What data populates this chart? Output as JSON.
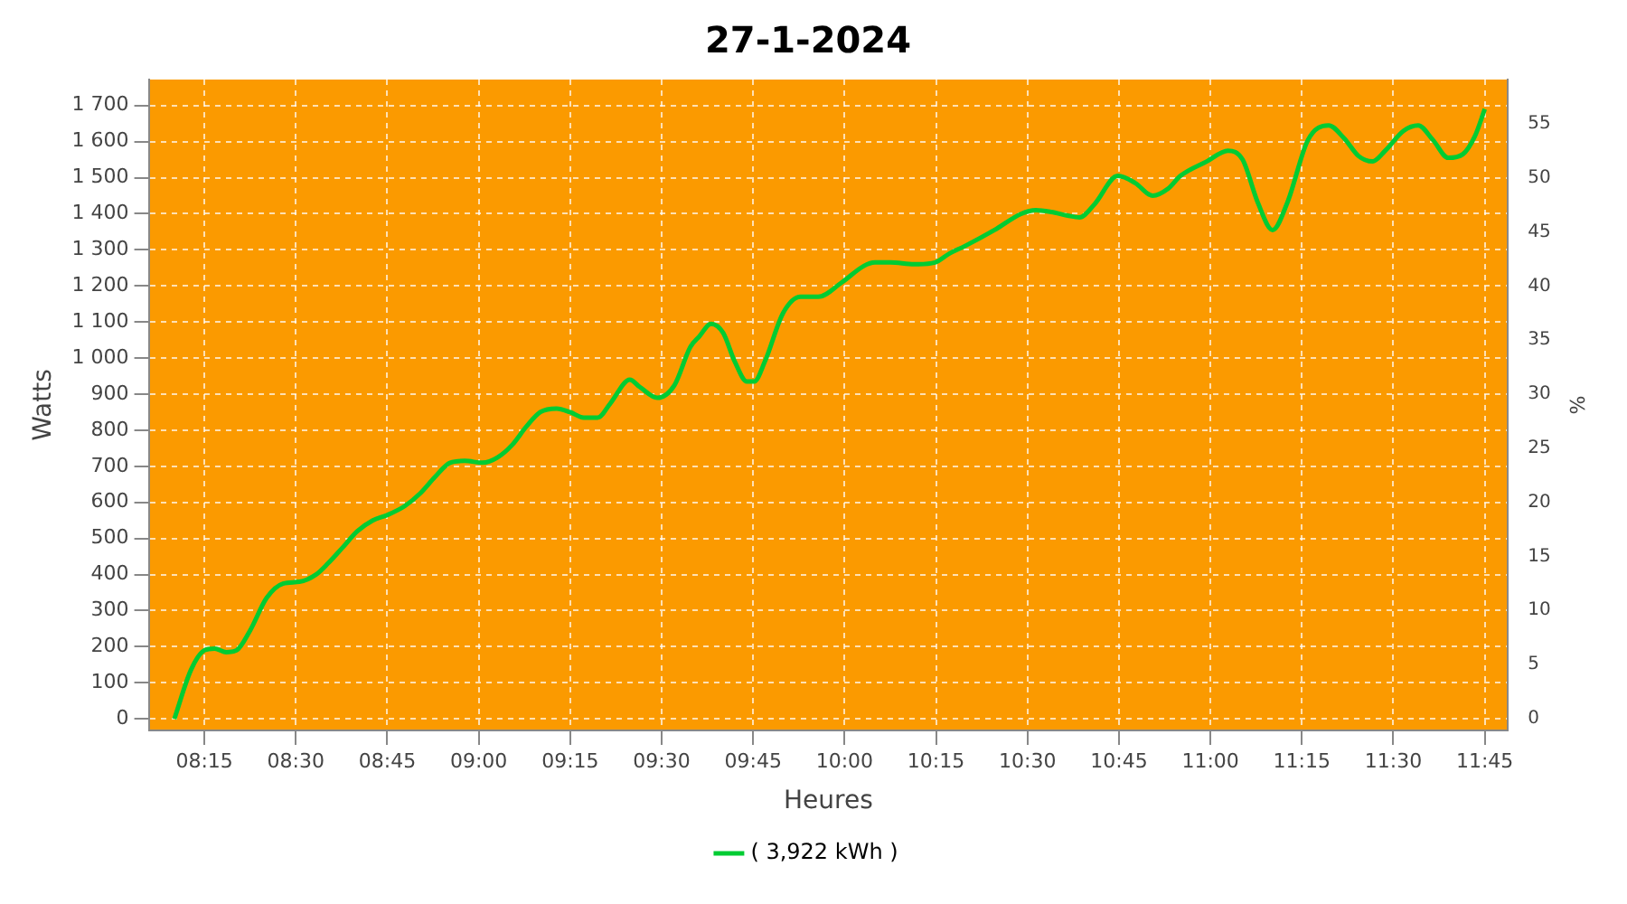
{
  "chart_data": {
    "type": "line",
    "title": "27-1-2024",
    "xlabel": "Heures",
    "ylabel": "Watts",
    "y2label": "%",
    "x": [
      8.168,
      8.213,
      8.25,
      8.278,
      8.31,
      8.338,
      8.375,
      8.42,
      8.465,
      8.51,
      8.555,
      8.587,
      8.628,
      8.668,
      8.71,
      8.75,
      8.798,
      8.84,
      8.88,
      8.922,
      8.962,
      9.01,
      9.052,
      9.092,
      9.13,
      9.168,
      9.213,
      9.25,
      9.287,
      9.325,
      9.36,
      9.413,
      9.44,
      9.488,
      9.535,
      9.578,
      9.603,
      9.635,
      9.668,
      9.7,
      9.733,
      9.753,
      9.782,
      9.832,
      9.88,
      9.928,
      9.993,
      10.052,
      10.083,
      10.125,
      10.19,
      10.247,
      10.287,
      10.328,
      10.41,
      10.483,
      10.523,
      10.565,
      10.61,
      10.642,
      10.682,
      10.747,
      10.795,
      10.842,
      10.885,
      10.918,
      10.99,
      11.048,
      11.088,
      11.13,
      11.17,
      11.21,
      11.267,
      11.323,
      11.365,
      11.405,
      11.443,
      11.478,
      11.528,
      11.568,
      11.608,
      11.65,
      11.69,
      11.723,
      11.75
    ],
    "series": [
      {
        "name": "( 3,922 kWh )",
        "color": "#00cc33",
        "values": [
          0,
          135,
          190,
          195,
          185,
          190,
          245,
          335,
          375,
          380,
          400,
          430,
          475,
          520,
          550,
          565,
          590,
          625,
          670,
          710,
          715,
          710,
          725,
          760,
          810,
          850,
          860,
          850,
          835,
          835,
          875,
          940,
          920,
          890,
          925,
          1030,
          1060,
          1095,
          1070,
          990,
          935,
          935,
          990,
          1125,
          1170,
          1170,
          1210,
          1255,
          1265,
          1265,
          1260,
          1265,
          1290,
          1310,
          1355,
          1400,
          1410,
          1405,
          1395,
          1390,
          1425,
          1505,
          1485,
          1450,
          1470,
          1505,
          1545,
          1575,
          1550,
          1430,
          1355,
          1430,
          1605,
          1645,
          1610,
          1560,
          1545,
          1575,
          1630,
          1645,
          1605,
          1555,
          1565,
          1615,
          1690
        ]
      }
    ],
    "xlim": [
      8.098,
      11.813
    ],
    "xticks": [
      {
        "value": 8.25,
        "label": "08:15"
      },
      {
        "value": 8.5,
        "label": "08:30"
      },
      {
        "value": 8.75,
        "label": "08:45"
      },
      {
        "value": 9,
        "label": "09:00"
      },
      {
        "value": 9.25,
        "label": "09:15"
      },
      {
        "value": 9.5,
        "label": "09:30"
      },
      {
        "value": 9.75,
        "label": "09:45"
      },
      {
        "value": 10,
        "label": "10:00"
      },
      {
        "value": 10.25,
        "label": "10:15"
      },
      {
        "value": 10.5,
        "label": "10:30"
      },
      {
        "value": 10.75,
        "label": "10:45"
      },
      {
        "value": 11,
        "label": "11:00"
      },
      {
        "value": 11.25,
        "label": "11:15"
      },
      {
        "value": 11.5,
        "label": "11:30"
      },
      {
        "value": 11.75,
        "label": "11:45"
      }
    ],
    "ylim": [
      -32,
      1772
    ],
    "yticks": [
      0,
      100,
      200,
      300,
      400,
      500,
      600,
      700,
      800,
      900,
      {
        "value": 1000,
        "label": "1 000"
      },
      {
        "value": 1100,
        "label": "1 100"
      },
      {
        "value": 1200,
        "label": "1 200"
      },
      {
        "value": 1300,
        "label": "1 300"
      },
      {
        "value": 1400,
        "label": "1 400"
      },
      {
        "value": 1500,
        "label": "1 500"
      },
      {
        "value": 1600,
        "label": "1 600"
      },
      {
        "value": 1700,
        "label": "1 700"
      }
    ],
    "y2lim": [
      -1.1,
      59.1
    ],
    "y2ticks": [
      0,
      5,
      10,
      15,
      20,
      25,
      30,
      35,
      40,
      45,
      50,
      55
    ],
    "grid": true,
    "legend": "bottom"
  }
}
